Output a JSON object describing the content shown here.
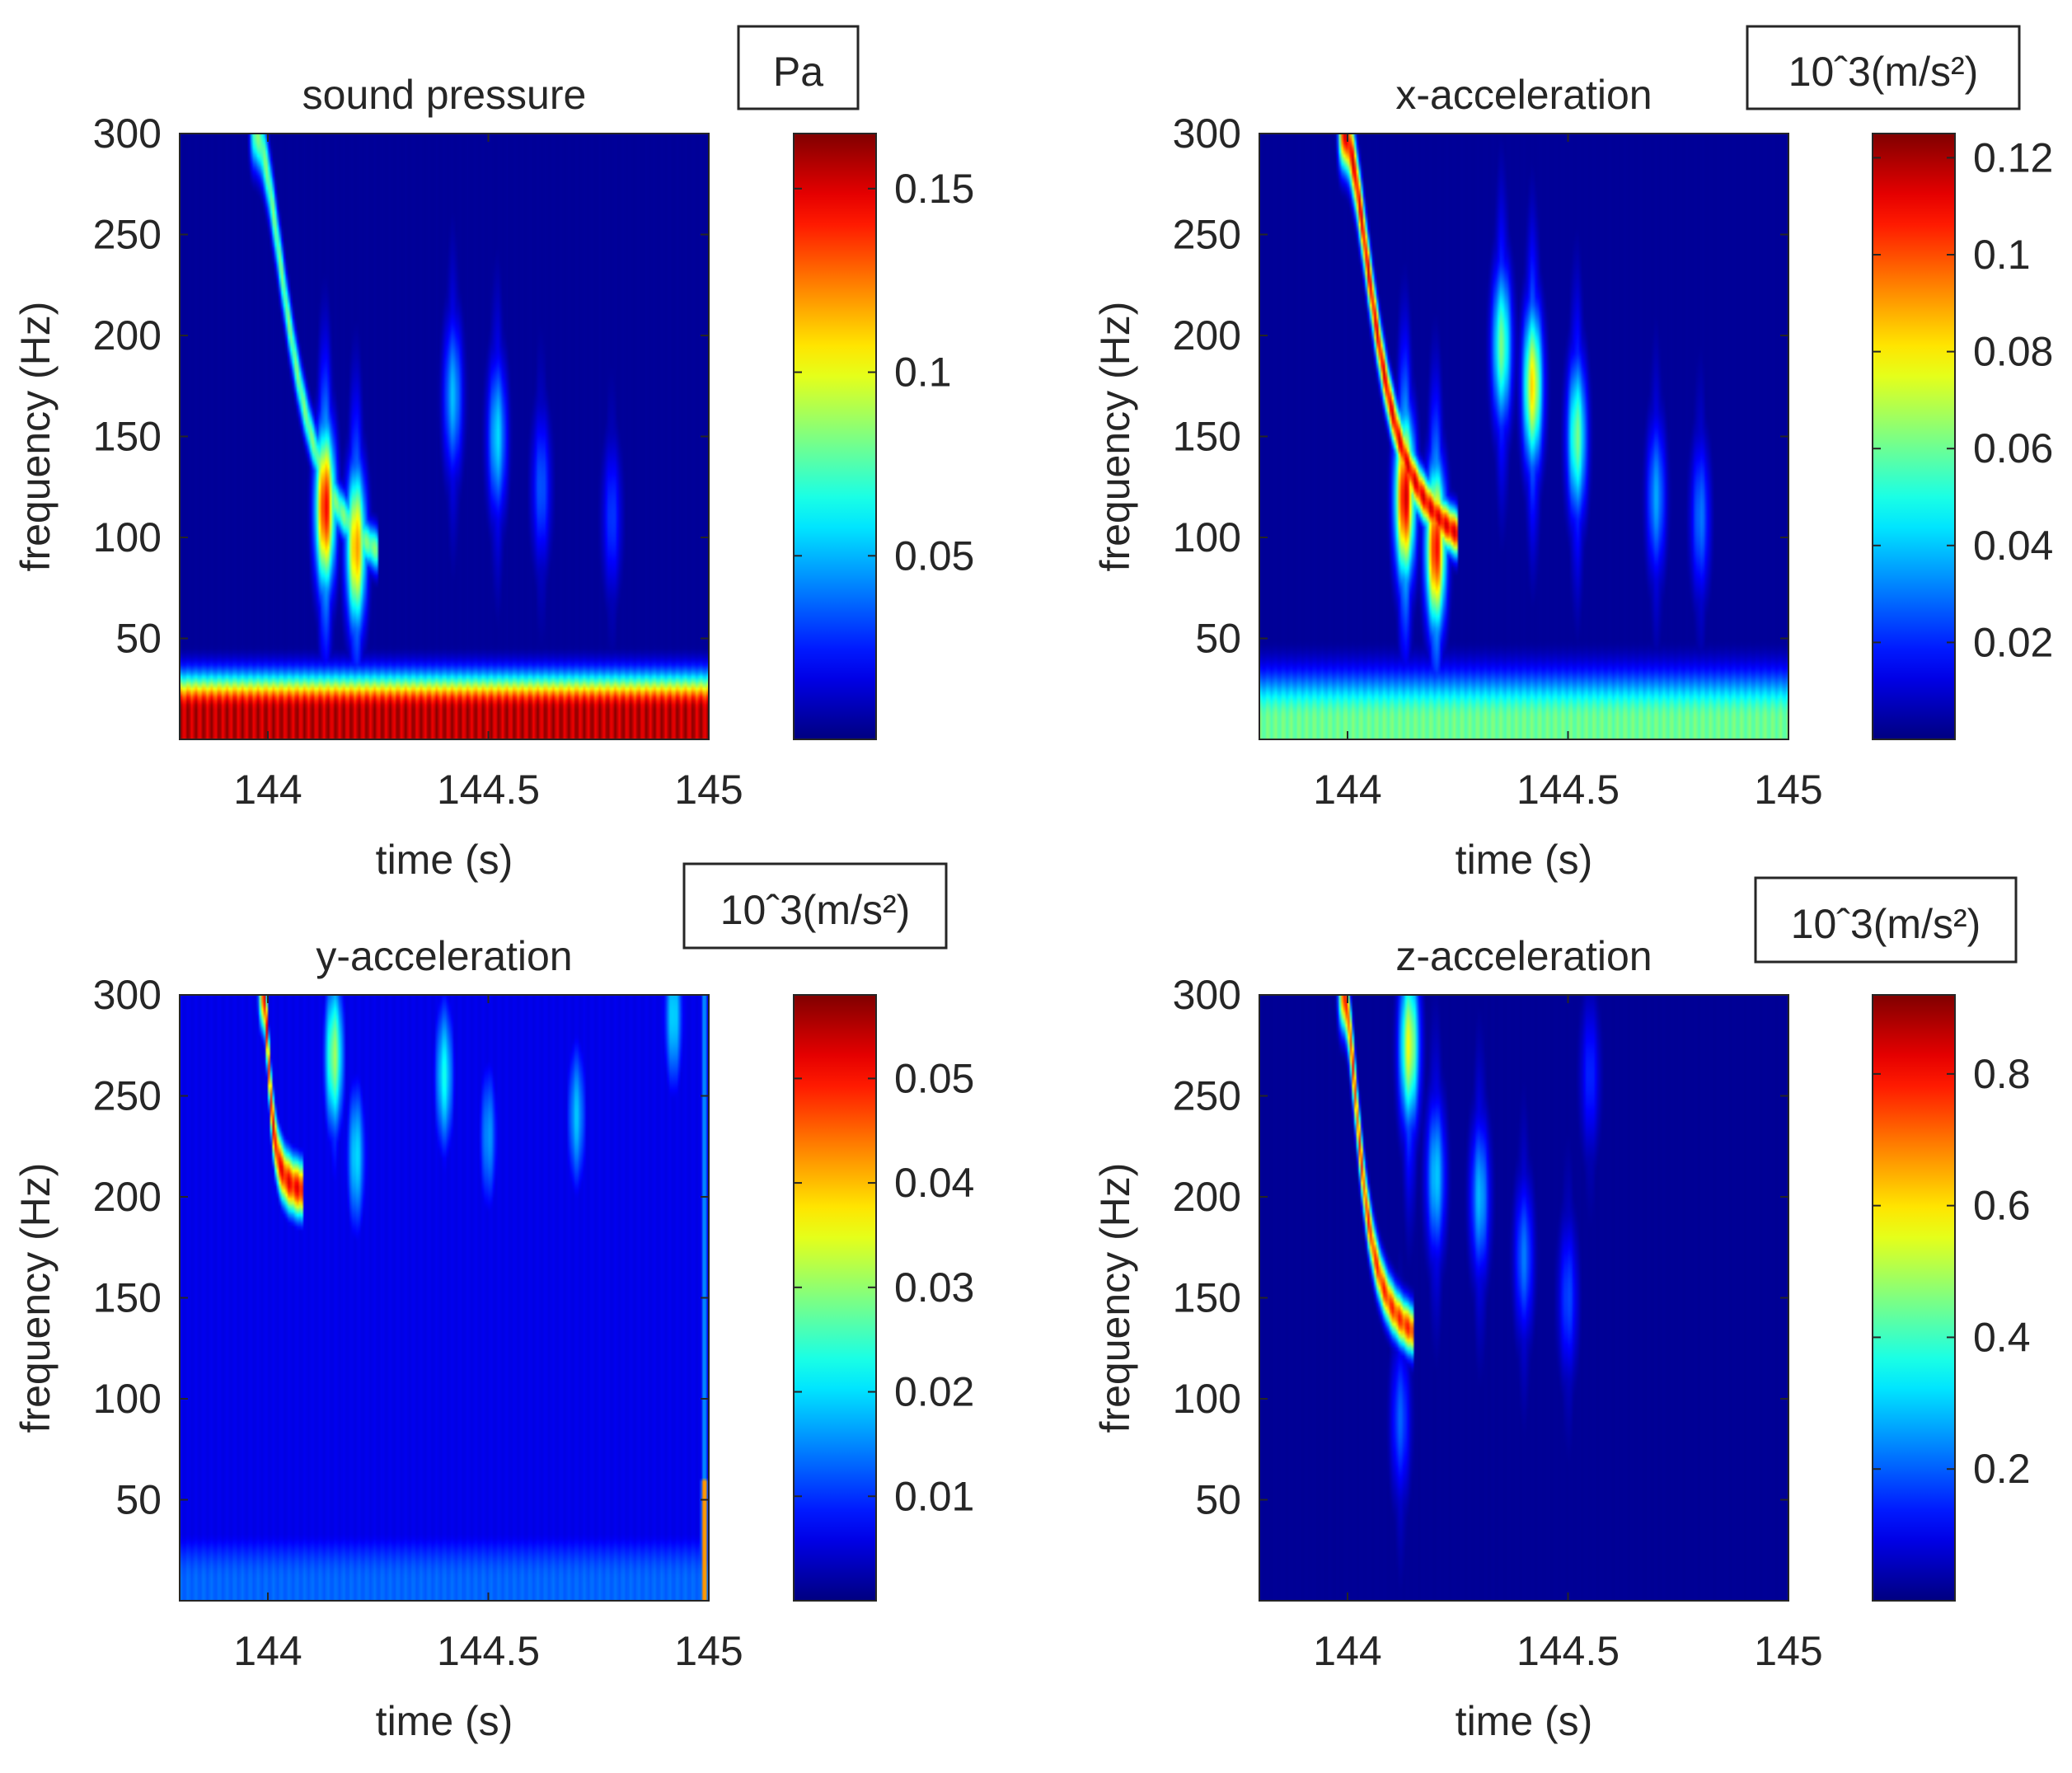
{
  "chart_data": [
    {
      "type": "heatmap",
      "title": "sound pressure",
      "unit_label": "Pa",
      "xlabel": "time (s)",
      "ylabel": "frequency (Hz)",
      "xlim": [
        143.8,
        145
      ],
      "ylim": [
        0,
        300
      ],
      "xticks": [
        "144",
        "144.5",
        "145"
      ],
      "xtick_values": [
        144,
        144.5,
        145
      ],
      "yticks": [
        "50",
        "100",
        "150",
        "200",
        "250",
        "300"
      ],
      "ytick_values": [
        50,
        100,
        150,
        200,
        250,
        300
      ],
      "colorbar": {
        "min": 0,
        "max": 0.165,
        "ticks": [
          "0.05",
          "0.1",
          "0.15"
        ],
        "tick_values": [
          0.05,
          0.1,
          0.15
        ]
      },
      "features": {
        "low_band": {
          "f_center": 15,
          "f_width": 16,
          "amplitude": 0.155
        },
        "chirp": {
          "t0": 143.97,
          "f_start": 300,
          "f_end": 70,
          "t_end": 144.2,
          "amplitude": 0.08
        },
        "blobs": [
          {
            "t": 144.13,
            "f": 115,
            "amplitude": 0.145
          },
          {
            "t": 144.2,
            "f": 95,
            "amplitude": 0.12
          },
          {
            "t": 144.42,
            "f": 170,
            "amplitude": 0.05
          },
          {
            "t": 144.52,
            "f": 150,
            "amplitude": 0.055
          },
          {
            "t": 144.62,
            "f": 125,
            "amplitude": 0.035
          },
          {
            "t": 144.78,
            "f": 110,
            "amplitude": 0.03
          }
        ],
        "background": 0.004
      }
    },
    {
      "type": "heatmap",
      "title": "x-acceleration",
      "unit_label": "10ˆ3(m/s²)",
      "xlabel": "time (s)",
      "ylabel": "frequency (Hz)",
      "xlim": [
        143.8,
        145
      ],
      "ylim": [
        0,
        300
      ],
      "xticks": [
        "144",
        "144.5",
        "145"
      ],
      "xtick_values": [
        144,
        144.5,
        145
      ],
      "yticks": [
        "50",
        "100",
        "150",
        "200",
        "250",
        "300"
      ],
      "ytick_values": [
        50,
        100,
        150,
        200,
        250,
        300
      ],
      "colorbar": {
        "min": 0,
        "max": 0.125,
        "ticks": [
          "0.02",
          "0.04",
          "0.06",
          "0.08",
          "0.1",
          "0.12"
        ],
        "tick_values": [
          0.02,
          0.04,
          0.06,
          0.08,
          0.1,
          0.12
        ]
      },
      "features": {
        "low_band": {
          "f_center": 10,
          "f_width": 22,
          "amplitude": 0.06
        },
        "chirp": {
          "t0": 143.99,
          "f_start": 300,
          "f_end": 80,
          "t_end": 144.2,
          "amplitude": 0.11
        },
        "blobs": [
          {
            "t": 144.13,
            "f": 120,
            "amplitude": 0.115
          },
          {
            "t": 144.2,
            "f": 95,
            "amplitude": 0.11
          },
          {
            "t": 144.35,
            "f": 195,
            "amplitude": 0.06
          },
          {
            "t": 144.42,
            "f": 175,
            "amplitude": 0.08
          },
          {
            "t": 144.52,
            "f": 150,
            "amplitude": 0.06
          },
          {
            "t": 144.7,
            "f": 120,
            "amplitude": 0.035
          },
          {
            "t": 144.8,
            "f": 110,
            "amplitude": 0.03
          }
        ],
        "background": 0.003
      }
    },
    {
      "type": "heatmap",
      "title": "y-acceleration",
      "unit_label": "10ˆ3(m/s²)",
      "xlabel": "time (s)",
      "ylabel": "frequency (Hz)",
      "xlim": [
        143.8,
        145
      ],
      "ylim": [
        0,
        300
      ],
      "xticks": [
        "144",
        "144.5",
        "145"
      ],
      "xtick_values": [
        144,
        144.5,
        145
      ],
      "yticks": [
        "50",
        "100",
        "150",
        "200",
        "250",
        "300"
      ],
      "ytick_values": [
        50,
        100,
        150,
        200,
        250,
        300
      ],
      "colorbar": {
        "min": 0,
        "max": 0.058,
        "ticks": [
          "0.01",
          "0.02",
          "0.03",
          "0.04",
          "0.05"
        ],
        "tick_values": [
          0.01,
          0.02,
          0.03,
          0.04,
          0.05
        ]
      },
      "features": {
        "low_band": {
          "f_center": 10,
          "f_width": 25,
          "amplitude": 0.013
        },
        "chirp": {
          "t0": 143.99,
          "f_start": 300,
          "f_end": 200,
          "t_end": 144.03,
          "amplitude": 0.05
        },
        "edge_spike": {
          "t": 144.99,
          "amplitude": 0.052
        },
        "blobs": [
          {
            "t": 144.15,
            "f": 270,
            "amplitude": 0.03
          },
          {
            "t": 144.2,
            "f": 220,
            "amplitude": 0.02
          },
          {
            "t": 144.4,
            "f": 260,
            "amplitude": 0.022
          },
          {
            "t": 144.5,
            "f": 230,
            "amplitude": 0.016
          },
          {
            "t": 144.7,
            "f": 240,
            "amplitude": 0.018
          },
          {
            "t": 144.92,
            "f": 290,
            "amplitude": 0.02
          }
        ],
        "background": 0.006
      }
    },
    {
      "type": "heatmap",
      "title": "z-acceleration",
      "unit_label": "10ˆ3(m/s²)",
      "xlabel": "time (s)",
      "ylabel": "frequency (Hz)",
      "xlim": [
        143.8,
        145
      ],
      "ylim": [
        0,
        300
      ],
      "xticks": [
        "144",
        "144.5",
        "145"
      ],
      "xtick_values": [
        144,
        144.5,
        145
      ],
      "yticks": [
        "50",
        "100",
        "150",
        "200",
        "250",
        "300"
      ],
      "ytick_values": [
        50,
        100,
        150,
        200,
        250,
        300
      ],
      "colorbar": {
        "min": 0,
        "max": 0.92,
        "ticks": [
          "0.2",
          "0.4",
          "0.6",
          "0.8"
        ],
        "tick_values": [
          0.2,
          0.4,
          0.6,
          0.8
        ]
      },
      "features": {
        "chirp": {
          "t0": 143.99,
          "f_start": 300,
          "f_end": 120,
          "t_end": 144.1,
          "amplitude": 0.75
        },
        "blobs": [
          {
            "t": 144.14,
            "f": 275,
            "amplitude": 0.55
          },
          {
            "t": 144.2,
            "f": 210,
            "amplitude": 0.3
          },
          {
            "t": 144.3,
            "f": 200,
            "amplitude": 0.28
          },
          {
            "t": 144.4,
            "f": 170,
            "amplitude": 0.22
          },
          {
            "t": 144.5,
            "f": 150,
            "amplitude": 0.18
          },
          {
            "t": 144.12,
            "f": 90,
            "amplitude": 0.2
          },
          {
            "t": 144.55,
            "f": 260,
            "amplitude": 0.15
          }
        ],
        "background": 0.02
      }
    }
  ]
}
